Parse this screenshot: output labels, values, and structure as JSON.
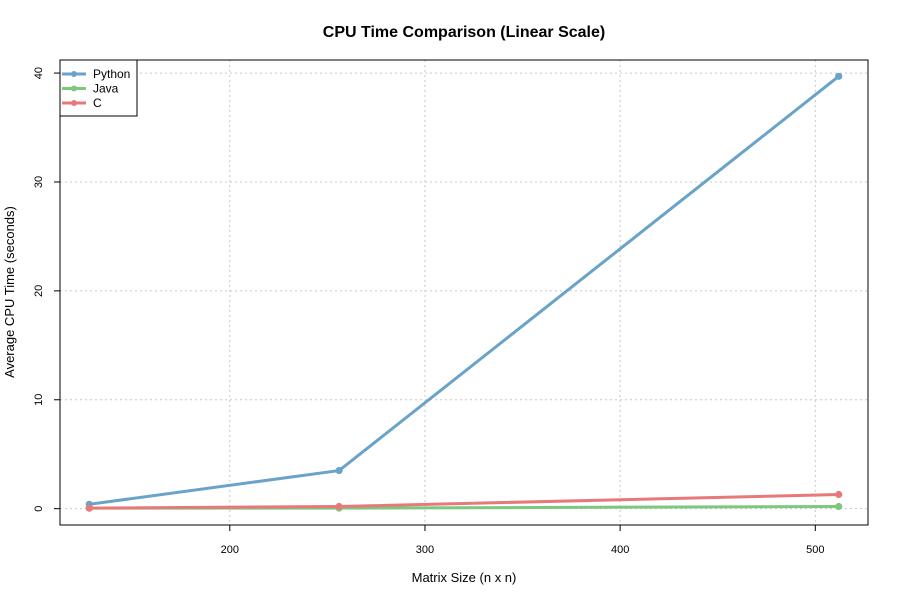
{
  "chart_data": {
    "type": "line",
    "title": "CPU Time Comparison (Linear Scale)",
    "xlabel": "Matrix Size (n x n)",
    "ylabel": "Average CPU Time (seconds)",
    "x": [
      128,
      256,
      512
    ],
    "xlim": [
      113,
      527
    ],
    "ylim": [
      -1.5,
      41.2
    ],
    "xticks": [
      200,
      300,
      400,
      500
    ],
    "yticks": [
      0,
      10,
      20,
      30,
      40
    ],
    "grid": true,
    "legend_position": "top-left",
    "series": [
      {
        "name": "Python",
        "values": [
          0.4,
          3.5,
          39.7
        ],
        "color": "#6aa3c8"
      },
      {
        "name": "Java",
        "values": [
          0.05,
          0.05,
          0.2
        ],
        "color": "#7dc87d"
      },
      {
        "name": "C",
        "values": [
          0.05,
          0.2,
          1.3
        ],
        "color": "#e8797a"
      }
    ]
  }
}
